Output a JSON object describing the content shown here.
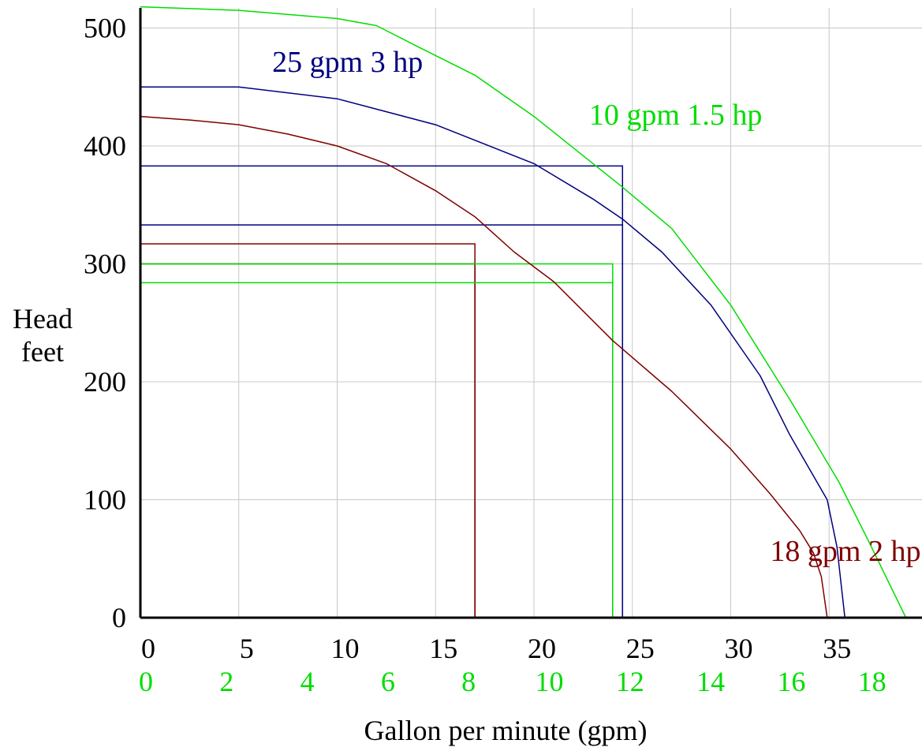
{
  "chart_data": {
    "type": "line",
    "title": "",
    "xlabel": "Gallon per minute (gpm)",
    "ylabel_lines": [
      "Head",
      "feet"
    ],
    "xlim": [
      0,
      40
    ],
    "ylim": [
      0,
      520
    ],
    "grid": true,
    "colors": {
      "blue": "#00007f",
      "red": "#7f0000",
      "green": "#00dd00",
      "grid": "#c8c8c8",
      "axis": "#000000"
    },
    "x_ticks": [
      0,
      5,
      10,
      15,
      20,
      25,
      30,
      35
    ],
    "x_tick_labels": [
      "0",
      "5",
      "10",
      "15",
      "20",
      "25",
      "30",
      "35"
    ],
    "x2_ticks": [
      0,
      2,
      4,
      6,
      8,
      10,
      12,
      14,
      16,
      18
    ],
    "x2_tick_labels": [
      "0",
      "2",
      "4",
      "6",
      "8",
      "10",
      "12",
      "14",
      "16",
      "18"
    ],
    "x2_scale": 2.05,
    "x2_color": "#00dd00",
    "y_ticks": [
      0,
      100,
      200,
      300,
      400,
      500
    ],
    "y_tick_labels": [
      "0",
      "100",
      "200",
      "300",
      "400",
      "500"
    ],
    "grid_x": [
      0,
      5,
      10,
      15,
      20,
      25,
      30,
      35,
      40
    ],
    "grid_y": [
      100,
      200,
      300,
      400,
      500
    ],
    "series": [
      {
        "name": "25 gpm 3 hp",
        "color": "#00007f",
        "points": [
          [
            0,
            450
          ],
          [
            5,
            450
          ],
          [
            10,
            440
          ],
          [
            15,
            418
          ],
          [
            20,
            385
          ],
          [
            23,
            355
          ],
          [
            24.5,
            338
          ],
          [
            26.5,
            310
          ],
          [
            29,
            265
          ],
          [
            31.5,
            205
          ],
          [
            33,
            155
          ],
          [
            34.9,
            100
          ],
          [
            35.4,
            60
          ],
          [
            35.8,
            0
          ]
        ]
      },
      {
        "name": "18 gpm 2 hp",
        "color": "#7f0000",
        "points": [
          [
            0,
            425
          ],
          [
            2.5,
            422
          ],
          [
            5,
            418
          ],
          [
            7.5,
            410
          ],
          [
            10,
            400
          ],
          [
            12.5,
            385
          ],
          [
            15,
            362
          ],
          [
            17,
            340
          ],
          [
            19,
            310
          ],
          [
            21,
            285
          ],
          [
            24,
            235
          ],
          [
            27,
            192
          ],
          [
            30,
            143
          ],
          [
            32,
            105
          ],
          [
            33.5,
            74
          ],
          [
            34.2,
            55
          ],
          [
            34.6,
            35
          ],
          [
            34.9,
            0
          ]
        ]
      },
      {
        "name": "10 gpm 1.5 hp",
        "color": "#00dd00",
        "points": [
          [
            0,
            518
          ],
          [
            5,
            515
          ],
          [
            10,
            508
          ],
          [
            12,
            502
          ],
          [
            14,
            485
          ],
          [
            17,
            460
          ],
          [
            20,
            425
          ],
          [
            23,
            385
          ],
          [
            24.5,
            365
          ],
          [
            27,
            330
          ],
          [
            30,
            265
          ],
          [
            33,
            185
          ],
          [
            35.5,
            115
          ],
          [
            37,
            65
          ],
          [
            38.9,
            0
          ]
        ]
      }
    ],
    "reference_lines": [
      {
        "color": "#00007f",
        "x": 24.5,
        "y": 383
      },
      {
        "color": "#00007f",
        "x": 24.5,
        "y": 333
      },
      {
        "color": "#7f0000",
        "x": 17.0,
        "y": 317
      },
      {
        "color": "#7f0000",
        "x": 17.0,
        "y": 300
      },
      {
        "color": "#00dd00",
        "x": 24.0,
        "y": 300
      },
      {
        "color": "#00dd00",
        "x": 24.0,
        "y": 284
      }
    ],
    "annotations": [
      {
        "text": "25 gpm 3 hp",
        "color": "#00007f",
        "x": 6.7,
        "y": 463
      },
      {
        "text": "10 gpm 1.5 hp",
        "color": "#00dd00",
        "x": 22.8,
        "y": 418
      },
      {
        "text": "18 gpm 2 hp",
        "color": "#7f0000",
        "x": 32.0,
        "y": 48
      }
    ]
  }
}
